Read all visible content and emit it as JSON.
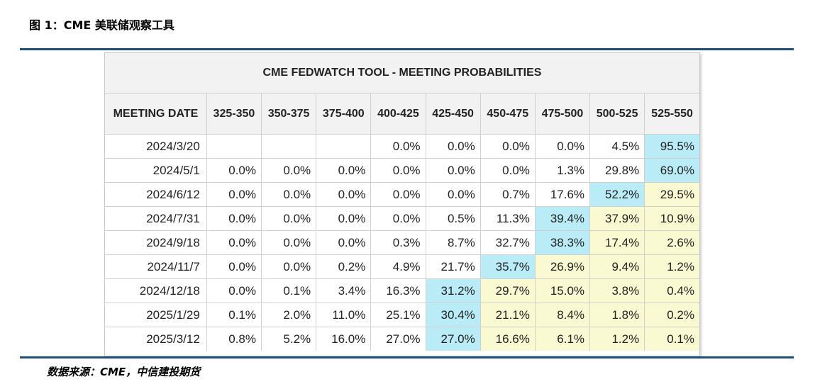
{
  "figure_title": "图 1：CME 美联储观察工具",
  "table_title": "CME FEDWATCH TOOL - MEETING PROBABILITIES",
  "header_first": "MEETING DATE",
  "rate_ranges": [
    "325-350",
    "350-375",
    "375-400",
    "400-425",
    "425-450",
    "450-475",
    "475-500",
    "500-525",
    "525-550"
  ],
  "rows": [
    {
      "date": "2024/3/20",
      "values": [
        "",
        "",
        "",
        "0.0%",
        "0.0%",
        "0.0%",
        "0.0%",
        "4.5%",
        "95.5%"
      ],
      "shade": [
        "",
        "",
        "",
        "",
        "",
        "",
        "",
        "",
        "hi"
      ]
    },
    {
      "date": "2024/5/1",
      "values": [
        "0.0%",
        "0.0%",
        "0.0%",
        "0.0%",
        "0.0%",
        "0.0%",
        "1.3%",
        "29.8%",
        "69.0%"
      ],
      "shade": [
        "",
        "",
        "",
        "",
        "",
        "",
        "",
        "",
        "hi"
      ]
    },
    {
      "date": "2024/6/12",
      "values": [
        "0.0%",
        "0.0%",
        "0.0%",
        "0.0%",
        "0.0%",
        "0.7%",
        "17.6%",
        "52.2%",
        "29.5%"
      ],
      "shade": [
        "",
        "",
        "",
        "",
        "",
        "",
        "",
        "hi",
        "mid"
      ]
    },
    {
      "date": "2024/7/31",
      "values": [
        "0.0%",
        "0.0%",
        "0.0%",
        "0.0%",
        "0.5%",
        "11.3%",
        "39.4%",
        "37.9%",
        "10.9%"
      ],
      "shade": [
        "",
        "",
        "",
        "",
        "",
        "",
        "hi",
        "mid",
        "mid"
      ]
    },
    {
      "date": "2024/9/18",
      "values": [
        "0.0%",
        "0.0%",
        "0.0%",
        "0.3%",
        "8.7%",
        "32.7%",
        "38.3%",
        "17.4%",
        "2.6%"
      ],
      "shade": [
        "",
        "",
        "",
        "",
        "",
        "",
        "hi",
        "mid",
        "mid"
      ]
    },
    {
      "date": "2024/11/7",
      "values": [
        "0.0%",
        "0.0%",
        "0.2%",
        "4.9%",
        "21.7%",
        "35.7%",
        "26.9%",
        "9.4%",
        "1.2%"
      ],
      "shade": [
        "",
        "",
        "",
        "",
        "",
        "hi",
        "mid",
        "mid",
        "mid"
      ]
    },
    {
      "date": "2024/12/18",
      "values": [
        "0.0%",
        "0.1%",
        "3.4%",
        "16.3%",
        "31.2%",
        "29.7%",
        "15.0%",
        "3.8%",
        "0.4%"
      ],
      "shade": [
        "",
        "",
        "",
        "",
        "hi",
        "mid",
        "mid",
        "mid",
        "mid"
      ]
    },
    {
      "date": "2025/1/29",
      "values": [
        "0.1%",
        "2.0%",
        "11.0%",
        "25.1%",
        "30.4%",
        "21.1%",
        "8.4%",
        "1.8%",
        "0.2%"
      ],
      "shade": [
        "",
        "",
        "",
        "",
        "hi",
        "mid",
        "mid",
        "mid",
        "mid"
      ]
    },
    {
      "date": "2025/3/12",
      "values": [
        "0.8%",
        "5.2%",
        "16.0%",
        "27.0%",
        "27.0%",
        "16.6%",
        "6.1%",
        "1.2%",
        "0.1%"
      ],
      "shade": [
        "",
        "",
        "",
        "",
        "hi",
        "mid",
        "mid",
        "mid",
        "mid"
      ]
    }
  ],
  "colors": {
    "highlight": "#b9ecf6",
    "secondary": "#fafad2",
    "rule": "#1f4e79"
  },
  "source": "数据来源：CME，中信建投期货"
}
